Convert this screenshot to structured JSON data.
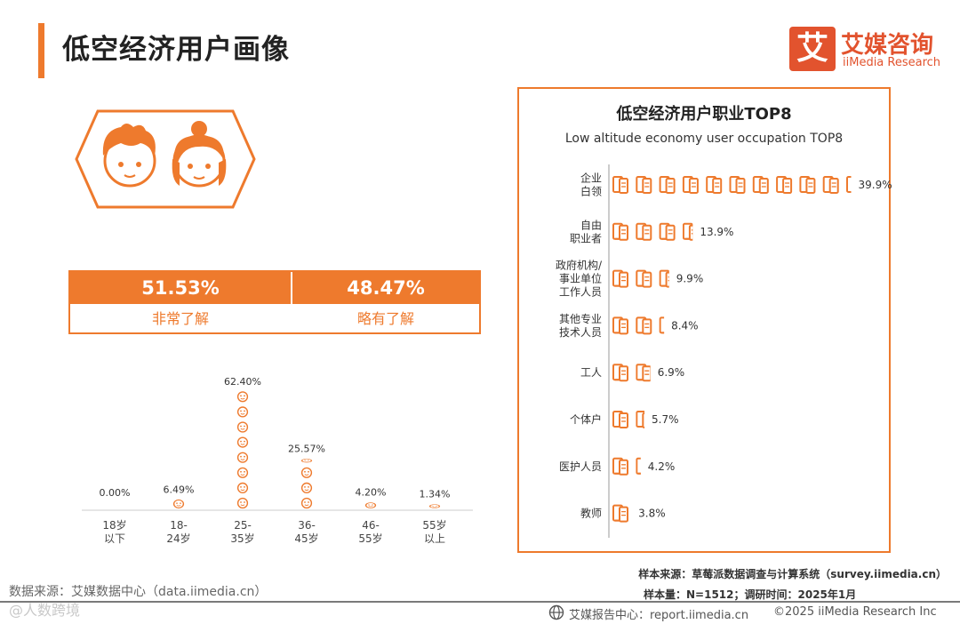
{
  "page": {
    "title": "低空经济用户画像",
    "logo_mark": "艾",
    "logo_cn": "艾媒咨询",
    "logo_en": "iiMedia Research"
  },
  "awareness": {
    "items": [
      {
        "value": "51.53%",
        "label": "非常了解"
      },
      {
        "value": "48.47%",
        "label": "略有了解"
      }
    ]
  },
  "colors": {
    "accent": "#ee7a2d",
    "brand": "#e2532e",
    "axis": "#999999"
  },
  "chart_data": [
    {
      "type": "bar",
      "id": "age",
      "categories": [
        [
          "18岁",
          "以下"
        ],
        [
          "18-",
          "24岁"
        ],
        [
          "25-",
          "35岁"
        ],
        [
          "36-",
          "45岁"
        ],
        [
          "46-",
          "55岁"
        ],
        [
          "55岁",
          "以上"
        ]
      ],
      "values": [
        0.0,
        6.49,
        62.4,
        25.57,
        4.2,
        1.34
      ],
      "value_labels": [
        "0.00%",
        "6.49%",
        "62.40%",
        "25.57%",
        "4.20%",
        "1.34%"
      ],
      "unit": "%",
      "icon": "smiley-face-icon"
    },
    {
      "type": "bar",
      "id": "occupation",
      "orientation": "horizontal",
      "title": "低空经济用户职业TOP8",
      "subtitle": "Low altitude economy user occupation TOP8",
      "categories": [
        [
          "企业",
          "白领"
        ],
        [
          "自由",
          "职业者"
        ],
        [
          "政府机构/",
          "事业单位",
          "工作人员"
        ],
        [
          "其他专业",
          "技术人员"
        ],
        [
          "工人"
        ],
        [
          "个体户"
        ],
        [
          "医护人员"
        ],
        [
          "教师"
        ]
      ],
      "values": [
        39.9,
        13.9,
        9.9,
        8.4,
        6.9,
        5.7,
        4.2,
        3.8
      ],
      "value_labels": [
        "39.9%",
        "13.9%",
        "9.9%",
        "8.4%",
        "6.9%",
        "5.7%",
        "4.2%",
        "3.8%"
      ],
      "unit": "%",
      "icon": "document-icon"
    }
  ],
  "footer": {
    "source": "样本来源：草莓派数据调查与计算系统（survey.iimedia.cn）",
    "sample": "样本量：N=1512；调研时间：2025年1月",
    "data_source": "数据来源：艾媒数据中心（data.iimedia.cn）",
    "report": "艾媒报告中心：report.iimedia.cn",
    "copyright": "©2025  iiMedia Research Inc",
    "watermark": "@人数跨境"
  }
}
